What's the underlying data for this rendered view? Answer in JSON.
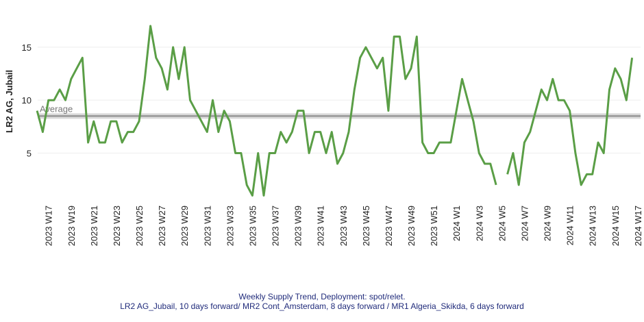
{
  "chart_data": {
    "type": "line",
    "y_label": "LR2 AG, Jubail",
    "caption": [
      "Weekly Supply Trend, Deployment: spot/relet.",
      "LR2 AG_Jubail, 10 days forward/ MR2 Cont_Amsterdam, 8 days forward / MR1 Algeria_Skikda, 6 days forward"
    ],
    "average": {
      "label": "Average",
      "value": 8.5
    },
    "categories": [
      null,
      null,
      "2023 W17",
      null,
      null,
      null,
      "2023 W19",
      null,
      null,
      null,
      "2023 W21",
      null,
      null,
      null,
      "2023 W23",
      null,
      null,
      null,
      "2023 W25",
      null,
      null,
      null,
      "2023 W27",
      null,
      null,
      null,
      "2023 W29",
      null,
      null,
      null,
      "2023 W31",
      null,
      null,
      null,
      "2023 W33",
      null,
      null,
      null,
      "2023 W35",
      null,
      null,
      null,
      "2023 W37",
      null,
      null,
      null,
      "2023 W39",
      null,
      null,
      null,
      "2023 W41",
      null,
      null,
      null,
      "2023 W43",
      null,
      null,
      null,
      "2023 W45",
      null,
      null,
      null,
      "2023 W47",
      null,
      null,
      null,
      "2023 W49",
      null,
      null,
      null,
      "2023 W51",
      null,
      null,
      null,
      "2024 W1",
      null,
      null,
      null,
      "2024 W3",
      null,
      null,
      null,
      "2024 W5",
      null,
      null,
      null,
      "2024 W7",
      null,
      null,
      null,
      "2024 W9",
      null,
      null,
      null,
      "2024 W11",
      null,
      null,
      null,
      "2024 W13",
      null,
      null,
      null,
      "2024 W15",
      null,
      null,
      null,
      "2024 W17"
    ],
    "series": [
      {
        "name": "LR2 AG, Jubail",
        "color": "#5a9e46",
        "values": [
          9,
          7,
          10,
          10,
          11,
          10,
          12,
          13,
          14,
          6,
          8,
          6,
          6,
          8,
          8,
          6,
          7,
          7,
          8,
          12,
          17,
          14,
          13,
          11,
          15,
          12,
          15,
          10,
          9,
          8,
          7,
          10,
          7,
          9,
          8,
          5,
          5,
          2,
          1,
          5,
          1,
          5,
          5,
          7,
          6,
          7,
          9,
          9,
          5,
          7,
          7,
          5,
          7,
          4,
          5,
          7,
          11,
          14,
          15,
          14,
          13,
          14,
          9,
          16,
          16,
          12,
          13,
          16,
          6,
          5,
          5,
          6,
          6,
          6,
          9,
          12,
          10,
          8,
          5,
          4,
          4,
          2,
          null,
          3,
          5,
          2,
          6,
          7,
          9,
          11,
          10,
          12,
          10,
          10,
          9,
          5,
          2,
          3,
          3,
          6,
          5,
          11,
          13,
          12,
          10,
          14,
          null
        ]
      }
    ],
    "ylim": [
      0.7,
      19
    ],
    "yticks": [
      5,
      10,
      15
    ],
    "grid": true
  }
}
